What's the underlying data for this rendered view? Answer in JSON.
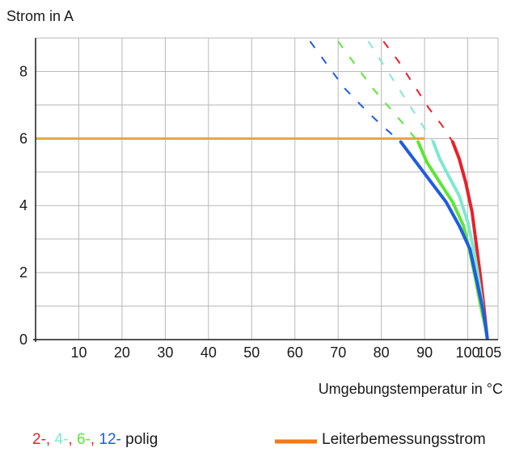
{
  "chart_data": {
    "type": "line",
    "ylabel": "Strom in A",
    "xlabel": "Umgebungstemperatur in °C",
    "xlim": [
      0,
      107
    ],
    "ylim": [
      0,
      9
    ],
    "xticks": [
      10,
      20,
      30,
      40,
      50,
      60,
      70,
      80,
      90,
      100,
      105
    ],
    "yticks": [
      0,
      2,
      4,
      6,
      8
    ],
    "grid": true,
    "rated_current": 6,
    "series": [
      {
        "name": "2-",
        "color": "#e8202a",
        "solid": [
          [
            96.5,
            5.9
          ],
          [
            98.0,
            5.4
          ],
          [
            99.5,
            4.7
          ],
          [
            101.0,
            3.8
          ],
          [
            102.0,
            2.8
          ],
          [
            103.0,
            1.8
          ],
          [
            103.7,
            1.0
          ],
          [
            104.2,
            0.4
          ],
          [
            104.5,
            0.05
          ]
        ],
        "dashed": [
          [
            80.5,
            8.9
          ],
          [
            84.0,
            8.3
          ],
          [
            87.5,
            7.6
          ],
          [
            91.0,
            6.9
          ],
          [
            94.0,
            6.4
          ],
          [
            96.5,
            5.9
          ]
        ]
      },
      {
        "name": "4-",
        "color": "#7ee8d0",
        "solid": [
          [
            92.0,
            5.9
          ],
          [
            93.5,
            5.4
          ],
          [
            95.5,
            4.9
          ],
          [
            98.0,
            4.3
          ],
          [
            100.0,
            3.5
          ],
          [
            101.5,
            2.6
          ],
          [
            102.5,
            1.8
          ],
          [
            103.4,
            1.0
          ],
          [
            104.0,
            0.4
          ],
          [
            104.5,
            0.05
          ]
        ],
        "dashed": [
          [
            77.0,
            8.9
          ],
          [
            80.5,
            8.2
          ],
          [
            84.0,
            7.5
          ],
          [
            87.5,
            6.8
          ],
          [
            90.0,
            6.3
          ],
          [
            92.0,
            5.9
          ]
        ]
      },
      {
        "name": "6-",
        "color": "#5ce636",
        "solid": [
          [
            88.5,
            5.9
          ],
          [
            90.5,
            5.3
          ],
          [
            93.5,
            4.7
          ],
          [
            96.5,
            4.1
          ],
          [
            99.0,
            3.4
          ],
          [
            100.5,
            2.6
          ],
          [
            101.8,
            1.8
          ],
          [
            103.0,
            1.0
          ],
          [
            104.0,
            0.4
          ],
          [
            104.5,
            0.05
          ]
        ],
        "dashed": [
          [
            70.0,
            8.9
          ],
          [
            74.0,
            8.2
          ],
          [
            78.0,
            7.5
          ],
          [
            82.0,
            6.9
          ],
          [
            86.0,
            6.3
          ],
          [
            88.5,
            5.9
          ]
        ]
      },
      {
        "name": "12-",
        "color": "#1f5ce0",
        "solid": [
          [
            84.5,
            5.9
          ],
          [
            88.0,
            5.3
          ],
          [
            91.5,
            4.7
          ],
          [
            95.0,
            4.1
          ],
          [
            98.0,
            3.4
          ],
          [
            100.5,
            2.7
          ],
          [
            102.0,
            1.8
          ],
          [
            103.5,
            0.9
          ],
          [
            104.2,
            0.35
          ],
          [
            104.5,
            0.05
          ]
        ],
        "dashed": [
          [
            63.5,
            8.9
          ],
          [
            67.5,
            8.2
          ],
          [
            71.5,
            7.5
          ],
          [
            76.0,
            6.9
          ],
          [
            80.0,
            6.4
          ],
          [
            84.5,
            5.9
          ]
        ]
      }
    ],
    "rated_line": {
      "name": "Leiterbemessungsstrom",
      "color": "#f2a03a",
      "x": [
        0,
        90
      ],
      "y": 6
    },
    "legend": {
      "items": [
        {
          "text": "2-",
          "color": "#e8202a"
        },
        {
          "text": ", ",
          "color": "#e8202a"
        },
        {
          "text": "4-",
          "color": "#7ee8d0"
        },
        {
          "text": ", ",
          "color": "#e8202a"
        },
        {
          "text": "6-",
          "color": "#5ce636"
        },
        {
          "text": ", ",
          "color": "#e8202a"
        },
        {
          "text": "12-",
          "color": "#1f5ce0"
        },
        {
          "text": " polig",
          "color": "#1a1a1a"
        }
      ],
      "rated_label": "Leiterbemessungsstrom",
      "rated_color": "#f07a1a",
      "placement": "bottom"
    }
  }
}
